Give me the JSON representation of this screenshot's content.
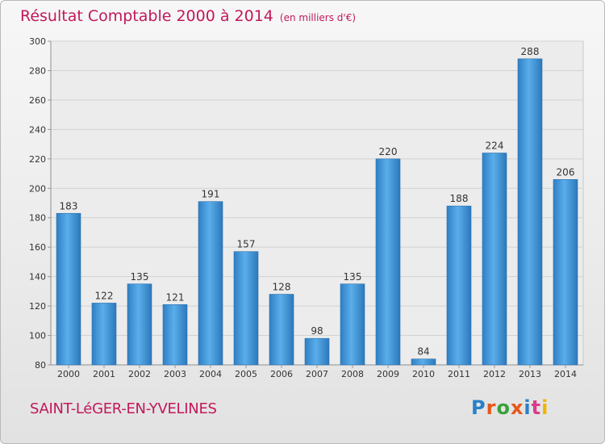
{
  "chart_data": {
    "type": "bar",
    "title": "Résultat Comptable 2000 à 2014",
    "subtitle": "(en milliers d'€)",
    "categories": [
      "2000",
      "2001",
      "2002",
      "2003",
      "2004",
      "2005",
      "2006",
      "2007",
      "2008",
      "2009",
      "2010",
      "2011",
      "2012",
      "2013",
      "2014"
    ],
    "values": [
      183,
      122,
      135,
      121,
      191,
      157,
      128,
      98,
      135,
      220,
      84,
      188,
      224,
      288,
      206
    ],
    "ylim": [
      80,
      300
    ],
    "yticks": [
      80,
      100,
      120,
      140,
      160,
      180,
      200,
      220,
      240,
      260,
      280,
      300
    ],
    "grid": true,
    "bar_color": "#3d95d8"
  },
  "footer": {
    "location": "SAINT-LéGER-EN-YVELINES",
    "brand": "Proxiti",
    "brand_colors": [
      "#2a80c8",
      "#e8561a",
      "#3aa13a",
      "#e8561a",
      "#2a80c8",
      "#d93c8a",
      "#f0b400"
    ]
  }
}
